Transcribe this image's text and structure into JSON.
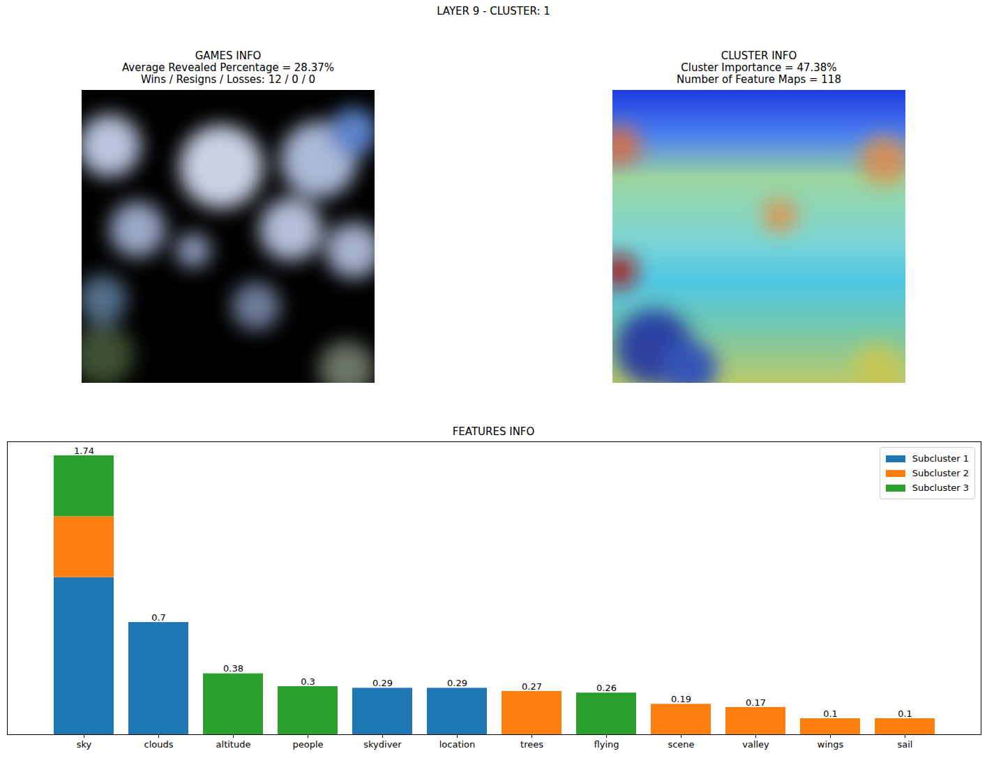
{
  "figure": {
    "title": "LAYER 9 - CLUSTER: 1",
    "panels": [
      {
        "title": "GAMES INFO",
        "lines": [
          "Average Revealed Percentage = 28.37%",
          "Wins / Resigns / Losses: 12 / 0 / 0"
        ]
      },
      {
        "title": "CLUSTER INFO",
        "lines": [
          "Cluster Importance = 47.38%",
          "Number of Feature Maps = 118"
        ]
      }
    ]
  },
  "chart_data": {
    "type": "bar",
    "title": "FEATURES INFO",
    "stacked": true,
    "data_labels": true,
    "categories": [
      "sky",
      "clouds",
      "altitude",
      "people",
      "skydiver",
      "location",
      "trees",
      "flying",
      "scene",
      "valley",
      "wings",
      "sail"
    ],
    "series": [
      {
        "name": "Subcluster 1",
        "color": "#1f77b4",
        "values": [
          0.98,
          0.7,
          null,
          null,
          0.29,
          0.29,
          null,
          null,
          null,
          null,
          null,
          null
        ]
      },
      {
        "name": "Subcluster 2",
        "color": "#ff7f0e",
        "values": [
          0.38,
          null,
          null,
          null,
          null,
          null,
          0.27,
          null,
          0.19,
          0.17,
          0.1,
          0.1
        ]
      },
      {
        "name": "Subcluster 3",
        "color": "#2ca02c",
        "values": [
          0.38,
          null,
          0.38,
          0.3,
          null,
          null,
          null,
          0.26,
          null,
          null,
          null,
          null
        ]
      }
    ],
    "totals": [
      1.74,
      0.7,
      0.38,
      0.3,
      0.29,
      0.29,
      0.27,
      0.26,
      0.19,
      0.17,
      0.1,
      0.1
    ],
    "ylim": [
      0,
      1.827
    ],
    "yticks": [],
    "tick_labels": "x",
    "grid": false,
    "legend": "upper right"
  }
}
